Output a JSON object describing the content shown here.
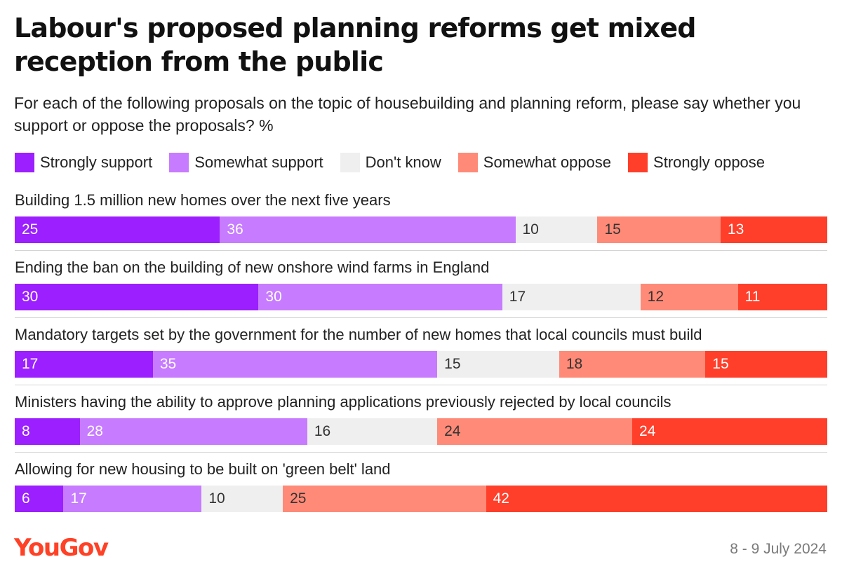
{
  "chart_data": {
    "type": "bar",
    "orientation": "horizontal",
    "stacked": true,
    "title": "Labour's proposed planning reforms get mixed reception from the public",
    "subtitle": "For each of the following proposals on the topic of housebuilding and planning reform, please say whether you support or oppose the proposals? %",
    "legend_position": "top",
    "grid": false,
    "categories": [
      "Building 1.5 million new homes over the next five years",
      "Ending the ban on the building of new onshore wind farms in England",
      "Mandatory targets set by the government for the number of new homes that local councils must build",
      "Ministers having the ability to approve planning applications previously rejected by local councils",
      "Allowing for new housing to be built on 'green belt' land"
    ],
    "series": [
      {
        "name": "Strongly support",
        "color": "#9b1fff",
        "text_color": "#ffffff",
        "values": [
          25,
          30,
          17,
          8,
          6
        ]
      },
      {
        "name": "Somewhat support",
        "color": "#c77bff",
        "text_color": "#ffffff",
        "values": [
          36,
          30,
          35,
          28,
          17
        ]
      },
      {
        "name": "Don't know",
        "color": "#efefef",
        "text_color": "#333333",
        "values": [
          10,
          17,
          15,
          16,
          10
        ]
      },
      {
        "name": "Somewhat oppose",
        "color": "#ff8a78",
        "text_color": "#333333",
        "values": [
          15,
          12,
          18,
          24,
          25
        ]
      },
      {
        "name": "Strongly oppose",
        "color": "#ff3f2a",
        "text_color": "#ffffff",
        "values": [
          13,
          11,
          15,
          24,
          42
        ]
      }
    ]
  },
  "footer": {
    "brand": "YouGov",
    "date": "8 - 9 July 2024"
  },
  "colors": {
    "brand": "#ff4126",
    "title": "#111111",
    "date": "#7a7a7a"
  }
}
